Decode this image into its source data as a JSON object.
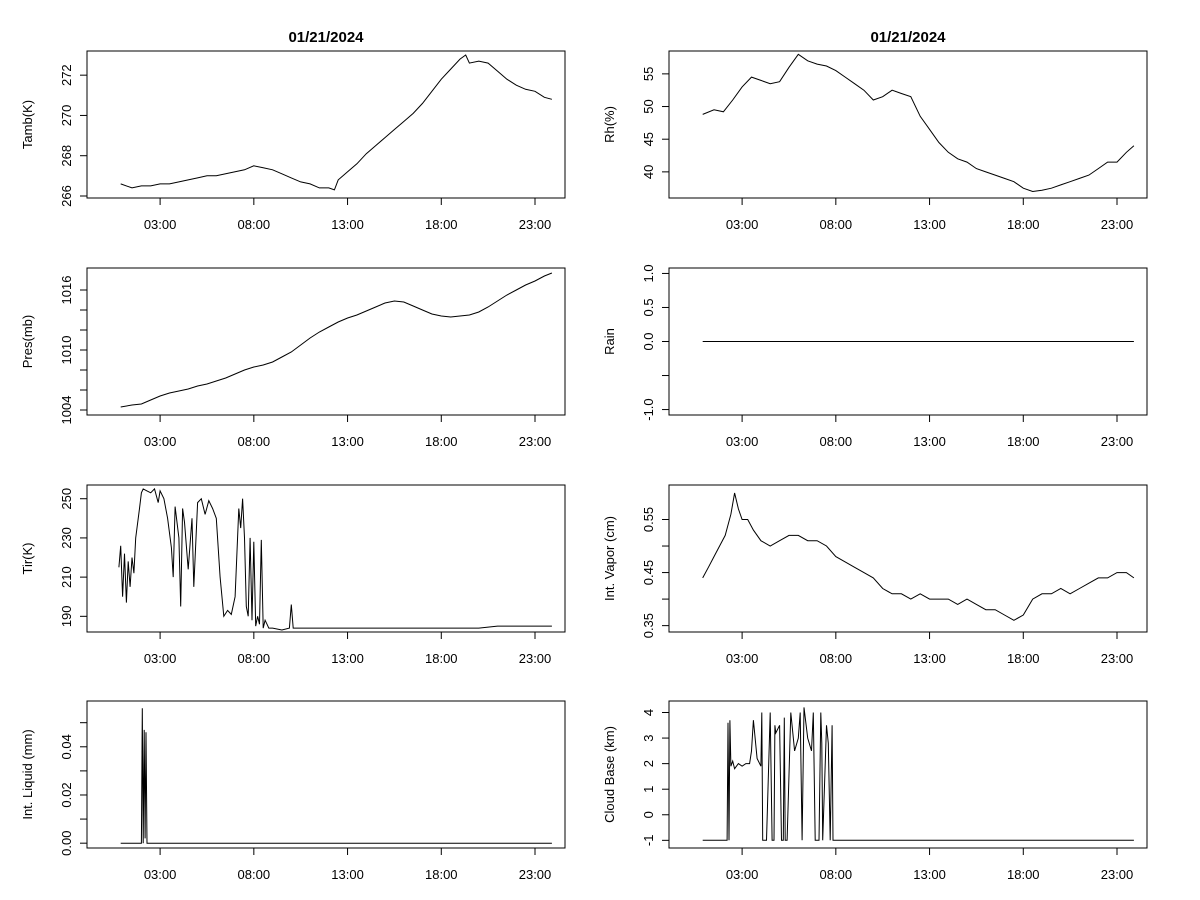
{
  "titles": {
    "left": "01/21/2024",
    "right": "01/21/2024"
  },
  "chart_data": [
    {
      "id": "tamb",
      "type": "line",
      "ylabel": "Tamb(K)",
      "x_ticks": [
        "03:00",
        "08:00",
        "13:00",
        "18:00",
        "23:00"
      ],
      "x_tick_hours": [
        3,
        8,
        13,
        18,
        23
      ],
      "xlim": [
        -0.9,
        24.6
      ],
      "ylim": [
        265.9,
        273.2
      ],
      "y_ticks": [
        266,
        268,
        270,
        272
      ],
      "x": [
        0.9,
        1.5,
        2.0,
        2.5,
        3.0,
        3.5,
        4.0,
        4.5,
        5.0,
        5.5,
        6.0,
        6.5,
        7.0,
        7.5,
        8.0,
        8.5,
        9.0,
        9.5,
        10.0,
        10.5,
        11.0,
        11.5,
        12.0,
        12.3,
        12.5,
        13.0,
        13.5,
        14.0,
        14.5,
        15.0,
        15.5,
        16.0,
        16.5,
        17.0,
        17.5,
        18.0,
        18.5,
        19.0,
        19.3,
        19.5,
        20.0,
        20.5,
        21.0,
        21.5,
        22.0,
        22.5,
        23.0,
        23.5,
        23.9
      ],
      "y": [
        266.6,
        266.4,
        266.5,
        266.5,
        266.6,
        266.6,
        266.7,
        266.8,
        266.9,
        267.0,
        267.0,
        267.1,
        267.2,
        267.3,
        267.5,
        267.4,
        267.3,
        267.1,
        266.9,
        266.7,
        266.6,
        266.4,
        266.4,
        266.3,
        266.8,
        267.2,
        267.6,
        268.1,
        268.5,
        268.9,
        269.3,
        269.7,
        270.1,
        270.6,
        271.2,
        271.8,
        272.3,
        272.8,
        273.0,
        272.6,
        272.7,
        272.6,
        272.2,
        271.8,
        271.5,
        271.3,
        271.2,
        270.9,
        270.8
      ]
    },
    {
      "id": "rh",
      "type": "line",
      "ylabel": "Rh(%)",
      "x_ticks": [
        "03:00",
        "08:00",
        "13:00",
        "18:00",
        "23:00"
      ],
      "x_tick_hours": [
        3,
        8,
        13,
        18,
        23
      ],
      "xlim": [
        -0.9,
        24.6
      ],
      "ylim": [
        36.0,
        58.5
      ],
      "y_ticks": [
        40,
        45,
        50,
        55
      ],
      "x": [
        0.9,
        1.5,
        2.0,
        2.5,
        3.0,
        3.5,
        4.0,
        4.5,
        5.0,
        5.5,
        6.0,
        6.5,
        7.0,
        7.5,
        8.0,
        8.5,
        9.0,
        9.5,
        10.0,
        10.5,
        11.0,
        11.5,
        12.0,
        12.5,
        13.0,
        13.5,
        14.0,
        14.5,
        15.0,
        15.5,
        16.0,
        16.5,
        17.0,
        17.5,
        18.0,
        18.5,
        19.0,
        19.5,
        20.0,
        20.5,
        21.0,
        21.5,
        22.0,
        22.5,
        23.0,
        23.5,
        23.9
      ],
      "y": [
        48.8,
        49.5,
        49.2,
        51.0,
        53.0,
        54.5,
        54.0,
        53.5,
        53.8,
        56.0,
        58.0,
        57.0,
        56.5,
        56.2,
        55.5,
        54.5,
        53.5,
        52.5,
        51.0,
        51.5,
        52.5,
        52.0,
        51.5,
        48.5,
        46.5,
        44.5,
        43.0,
        42.0,
        41.5,
        40.5,
        40.0,
        39.5,
        39.0,
        38.5,
        37.5,
        37.0,
        37.2,
        37.5,
        38.0,
        38.5,
        39.0,
        39.5,
        40.5,
        41.5,
        41.5,
        43.0,
        44.0
      ]
    },
    {
      "id": "pres",
      "type": "line",
      "ylabel": "Pres(mb)",
      "x_ticks": [
        "03:00",
        "08:00",
        "13:00",
        "18:00",
        "23:00"
      ],
      "x_tick_hours": [
        3,
        8,
        13,
        18,
        23
      ],
      "xlim": [
        -0.9,
        24.6
      ],
      "ylim": [
        1003.5,
        1018.2
      ],
      "y_ticks": [
        1004,
        1010,
        1016
      ],
      "y_minor_ticks": [
        1006,
        1008,
        1012,
        1014
      ],
      "x": [
        0.9,
        1.5,
        2.0,
        2.5,
        3.0,
        3.5,
        4.0,
        4.5,
        5.0,
        5.5,
        6.0,
        6.5,
        7.0,
        7.5,
        8.0,
        8.5,
        9.0,
        9.5,
        10.0,
        10.5,
        11.0,
        11.5,
        12.0,
        12.5,
        13.0,
        13.5,
        14.0,
        14.5,
        15.0,
        15.5,
        16.0,
        16.5,
        17.0,
        17.5,
        18.0,
        18.5,
        19.0,
        19.5,
        20.0,
        20.5,
        21.0,
        21.5,
        22.0,
        22.5,
        23.0,
        23.5,
        23.9
      ],
      "y": [
        1004.3,
        1004.5,
        1004.6,
        1005.0,
        1005.4,
        1005.7,
        1005.9,
        1006.1,
        1006.4,
        1006.6,
        1006.9,
        1007.2,
        1007.6,
        1008.0,
        1008.3,
        1008.5,
        1008.8,
        1009.3,
        1009.8,
        1010.5,
        1011.2,
        1011.8,
        1012.3,
        1012.8,
        1013.2,
        1013.5,
        1013.9,
        1014.3,
        1014.7,
        1014.9,
        1014.8,
        1014.4,
        1014.0,
        1013.6,
        1013.4,
        1013.3,
        1013.4,
        1013.5,
        1013.8,
        1014.3,
        1014.9,
        1015.5,
        1016.0,
        1016.5,
        1016.9,
        1017.4,
        1017.7
      ]
    },
    {
      "id": "rain",
      "type": "line",
      "ylabel": "Rain",
      "x_ticks": [
        "03:00",
        "08:00",
        "13:00",
        "18:00",
        "23:00"
      ],
      "x_tick_hours": [
        3,
        8,
        13,
        18,
        23
      ],
      "xlim": [
        -0.9,
        24.6
      ],
      "ylim": [
        -1.08,
        1.08
      ],
      "y_ticks": [
        -1.0,
        -0.5,
        0.0,
        0.5,
        1.0
      ],
      "y_tick_labels": [
        "-1.0",
        "",
        "0.0",
        "0.5",
        "1.0"
      ],
      "x": [
        0.9,
        23.9
      ],
      "y": [
        0.0,
        0.0
      ]
    },
    {
      "id": "tir",
      "type": "line",
      "ylabel": "Tir(K)",
      "x_ticks": [
        "03:00",
        "08:00",
        "13:00",
        "18:00",
        "23:00"
      ],
      "x_tick_hours": [
        3,
        8,
        13,
        18,
        23
      ],
      "xlim": [
        -0.9,
        24.6
      ],
      "ylim": [
        182.0,
        257.0
      ],
      "y_ticks": [
        190,
        210,
        230,
        250
      ],
      "x": [
        0.8,
        0.9,
        1.0,
        1.1,
        1.2,
        1.3,
        1.4,
        1.5,
        1.6,
        1.7,
        1.9,
        2.0,
        2.1,
        2.3,
        2.5,
        2.7,
        2.9,
        3.0,
        3.2,
        3.4,
        3.6,
        3.7,
        3.8,
        4.0,
        4.1,
        4.2,
        4.3,
        4.5,
        4.7,
        4.8,
        5.0,
        5.2,
        5.4,
        5.6,
        5.8,
        6.0,
        6.2,
        6.4,
        6.6,
        6.8,
        7.0,
        7.2,
        7.3,
        7.4,
        7.5,
        7.6,
        7.7,
        7.8,
        7.9,
        8.0,
        8.1,
        8.2,
        8.3,
        8.4,
        8.5,
        8.6,
        8.7,
        8.8,
        9.0,
        9.5,
        9.9,
        10.0,
        10.1,
        10.5,
        11.0,
        12.0,
        13.0,
        14.0,
        15.0,
        16.0,
        17.0,
        18.0,
        19.0,
        20.0,
        21.0,
        22.0,
        23.0,
        23.9
      ],
      "y": [
        215,
        226,
        200,
        222,
        197,
        218,
        205,
        220,
        212,
        230,
        245,
        253,
        255,
        254,
        253,
        255,
        248,
        254,
        250,
        240,
        225,
        210,
        246,
        230,
        195,
        245,
        238,
        214,
        240,
        205,
        248,
        250,
        242,
        249,
        245,
        240,
        210,
        190,
        193,
        191,
        200,
        245,
        235,
        250,
        230,
        195,
        190,
        230,
        188,
        228,
        185,
        190,
        186,
        229,
        184,
        188,
        186,
        184,
        184,
        183,
        184,
        196,
        184,
        184,
        184,
        184,
        184,
        184,
        184,
        184,
        184,
        184,
        184,
        184,
        185,
        185,
        185,
        185
      ]
    },
    {
      "id": "vapor",
      "type": "line",
      "ylabel": "Int. Vapor (cm)",
      "x_ticks": [
        "03:00",
        "08:00",
        "13:00",
        "18:00",
        "23:00"
      ],
      "x_tick_hours": [
        3,
        8,
        13,
        18,
        23
      ],
      "xlim": [
        -0.9,
        24.6
      ],
      "ylim": [
        0.338,
        0.615
      ],
      "y_ticks": [
        0.35,
        0.45,
        0.55
      ],
      "y_minor_ticks": [
        0.4,
        0.5
      ],
      "x": [
        0.9,
        1.2,
        1.5,
        1.8,
        2.1,
        2.4,
        2.6,
        2.8,
        3.0,
        3.3,
        3.6,
        4.0,
        4.5,
        5.0,
        5.5,
        6.0,
        6.5,
        7.0,
        7.5,
        8.0,
        8.5,
        9.0,
        9.5,
        10.0,
        10.5,
        11.0,
        11.5,
        12.0,
        12.5,
        13.0,
        13.5,
        14.0,
        14.5,
        15.0,
        15.5,
        16.0,
        16.5,
        17.0,
        17.5,
        18.0,
        18.5,
        19.0,
        19.5,
        20.0,
        20.5,
        21.0,
        21.5,
        22.0,
        22.5,
        23.0,
        23.5,
        23.9
      ],
      "y": [
        0.44,
        0.46,
        0.48,
        0.5,
        0.52,
        0.56,
        0.6,
        0.57,
        0.55,
        0.55,
        0.53,
        0.51,
        0.5,
        0.51,
        0.52,
        0.52,
        0.51,
        0.51,
        0.5,
        0.48,
        0.47,
        0.46,
        0.45,
        0.44,
        0.42,
        0.41,
        0.41,
        0.4,
        0.41,
        0.4,
        0.4,
        0.4,
        0.39,
        0.4,
        0.39,
        0.38,
        0.38,
        0.37,
        0.36,
        0.37,
        0.4,
        0.41,
        0.41,
        0.42,
        0.41,
        0.42,
        0.43,
        0.44,
        0.44,
        0.45,
        0.45,
        0.44
      ]
    },
    {
      "id": "liquid",
      "type": "line",
      "ylabel": "Int. Liquid (mm)",
      "x_ticks": [
        "03:00",
        "08:00",
        "13:00",
        "18:00",
        "23:00"
      ],
      "x_tick_hours": [
        3,
        8,
        13,
        18,
        23
      ],
      "xlim": [
        -0.9,
        24.6
      ],
      "ylim": [
        -0.002,
        0.059
      ],
      "y_ticks": [
        0.0,
        0.02,
        0.04
      ],
      "y_tick_labels": [
        "0.00",
        "0.02",
        "0.04"
      ],
      "y_minor_ticks": [
        0.01,
        0.03,
        0.05
      ],
      "x": [
        0.9,
        2.0,
        2.05,
        2.1,
        2.15,
        2.2,
        2.25,
        2.3,
        2.35,
        2.4,
        23.9
      ],
      "y": [
        0.0,
        0.0,
        0.056,
        0.0,
        0.047,
        0.002,
        0.046,
        0.0,
        0.0,
        0.0,
        0.0
      ]
    },
    {
      "id": "cloudbase",
      "type": "line",
      "ylabel": "Cloud Base (km)",
      "x_ticks": [
        "03:00",
        "08:00",
        "13:00",
        "18:00",
        "23:00"
      ],
      "x_tick_hours": [
        3,
        8,
        13,
        18,
        23
      ],
      "xlim": [
        -0.9,
        24.6
      ],
      "ylim": [
        -1.3,
        4.45
      ],
      "y_ticks": [
        -1,
        0,
        1,
        2,
        3,
        4
      ],
      "x": [
        0.9,
        2.2,
        2.25,
        2.3,
        2.35,
        2.4,
        2.5,
        2.6,
        2.8,
        3.0,
        3.2,
        3.4,
        3.5,
        3.6,
        3.8,
        4.0,
        4.05,
        4.1,
        4.3,
        4.5,
        4.6,
        4.7,
        4.75,
        4.8,
        5.0,
        5.1,
        5.2,
        5.25,
        5.3,
        5.4,
        5.6,
        5.8,
        6.0,
        6.1,
        6.2,
        6.3,
        6.5,
        6.7,
        6.8,
        6.9,
        7.0,
        7.1,
        7.2,
        7.25,
        7.3,
        7.5,
        7.6,
        7.7,
        7.8,
        7.85,
        7.9,
        8.0,
        23.9
      ],
      "y": [
        -1,
        -1,
        3.6,
        -1,
        3.7,
        1.9,
        2.1,
        1.8,
        2.0,
        1.9,
        2.0,
        2.0,
        2.5,
        3.7,
        2.2,
        1.9,
        4.0,
        -1,
        -1,
        4.0,
        -1,
        -1,
        3.5,
        3.2,
        3.5,
        -1,
        -1,
        3.8,
        -1,
        -1,
        4.0,
        2.5,
        3.0,
        4.0,
        -1,
        4.2,
        3.0,
        2.5,
        4.0,
        -1,
        -1,
        -1,
        4.0,
        2.8,
        -1,
        3.5,
        2.8,
        -1,
        3.5,
        -1,
        -1,
        -1,
        -1
      ]
    }
  ]
}
